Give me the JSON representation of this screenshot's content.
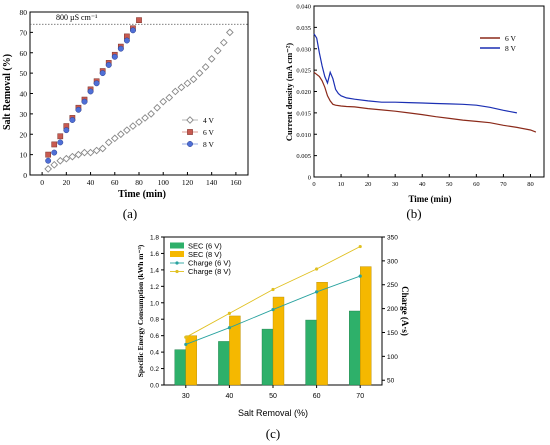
{
  "panel_labels": [
    "(a)",
    "(b)",
    "(c)"
  ],
  "chart_data": [
    {
      "type": "scatter",
      "panel": "(a)",
      "xlabel": "Time (min)",
      "ylabel": "Salt Removal (%)",
      "xlim": [
        -10,
        170
      ],
      "ylim": [
        0,
        80
      ],
      "xticks": [
        "0",
        "20",
        "40",
        "60",
        "80",
        "100",
        "120",
        "140",
        "160"
      ],
      "yticks": [
        "0",
        "10",
        "20",
        "30",
        "40",
        "50",
        "60",
        "70",
        "80"
      ],
      "legend_position": "bottom-right",
      "annotation": {
        "text": "800 µS cm⁻¹",
        "y": 74
      },
      "series": [
        {
          "name": "4 V",
          "marker": "open-diamond",
          "color": "#888888",
          "x": [
            5,
            10,
            15,
            20,
            25,
            30,
            35,
            40,
            45,
            50,
            55,
            60,
            65,
            70,
            75,
            80,
            85,
            90,
            95,
            100,
            105,
            110,
            115,
            120,
            125,
            130,
            135,
            140,
            145,
            150,
            155
          ],
          "y": [
            3,
            5,
            7,
            8,
            9,
            10,
            11,
            11,
            12,
            13,
            16,
            18,
            20,
            22,
            24,
            26,
            28,
            30,
            33,
            36,
            38,
            41,
            43,
            45,
            47,
            50,
            53,
            57,
            61,
            65,
            70
          ]
        },
        {
          "name": "6 V",
          "marker": "square",
          "color": "#c85a50",
          "x": [
            5,
            10,
            15,
            20,
            25,
            30,
            35,
            40,
            45,
            50,
            55,
            60,
            65,
            70,
            75,
            80
          ],
          "y": [
            10,
            15,
            19,
            24,
            28,
            33,
            37,
            42,
            46,
            51,
            55,
            59,
            63,
            68,
            72,
            76
          ]
        },
        {
          "name": "8 V",
          "marker": "circle",
          "color": "#4f6fd6",
          "x": [
            5,
            10,
            15,
            20,
            25,
            30,
            35,
            40,
            45,
            50,
            55,
            60,
            65,
            70,
            75
          ],
          "y": [
            7,
            11,
            16,
            22,
            27,
            32,
            36,
            41,
            45,
            50,
            54,
            58,
            62,
            66,
            71
          ]
        }
      ]
    },
    {
      "type": "line",
      "panel": "(b)",
      "xlabel": "Time (min)",
      "ylabel": "Current density (mA cm⁻²)",
      "xlim": [
        0,
        85
      ],
      "ylim": [
        0,
        0.04
      ],
      "xticks": [
        "0",
        "10",
        "20",
        "30",
        "40",
        "50",
        "60",
        "70",
        "80"
      ],
      "yticks": [
        "0",
        "0.005",
        "0.010",
        "0.015",
        "0.020",
        "0.025",
        "0.030",
        "0.035",
        "0.040"
      ],
      "legend_position": "top-right",
      "series": [
        {
          "name": "6 V",
          "color": "#8b2a1a",
          "x": [
            0,
            2,
            3,
            4,
            5,
            6,
            7,
            8,
            10,
            12,
            15,
            20,
            25,
            30,
            35,
            40,
            45,
            50,
            55,
            60,
            65,
            70,
            75,
            80,
            82
          ],
          "y": [
            0.0245,
            0.0235,
            0.0225,
            0.021,
            0.019,
            0.0178,
            0.017,
            0.0168,
            0.0166,
            0.0165,
            0.0164,
            0.016,
            0.0157,
            0.0154,
            0.015,
            0.0146,
            0.0141,
            0.0137,
            0.0133,
            0.013,
            0.0127,
            0.0121,
            0.0116,
            0.011,
            0.0105
          ]
        },
        {
          "name": "8 V",
          "color": "#1b2fb3",
          "x": [
            0,
            1,
            2,
            3,
            4,
            5,
            6,
            7,
            8,
            9,
            10,
            12,
            15,
            20,
            25,
            30,
            35,
            40,
            45,
            50,
            55,
            60,
            65,
            70,
            75
          ],
          "y": [
            0.0335,
            0.0325,
            0.029,
            0.026,
            0.0235,
            0.022,
            0.0245,
            0.023,
            0.0205,
            0.0195,
            0.019,
            0.0185,
            0.0182,
            0.0178,
            0.0175,
            0.0175,
            0.0174,
            0.0173,
            0.0172,
            0.0171,
            0.017,
            0.0168,
            0.0163,
            0.0156,
            0.015
          ]
        }
      ]
    },
    {
      "type": "bar",
      "panel": "(c)",
      "categories": [
        "30",
        "40",
        "50",
        "60",
        "70"
      ],
      "xlabel": "Salt Removal (%)",
      "ylabel": "Specific Energy Consumption (kWh m⁻³)",
      "ylabel_right": "Charge (A·s)",
      "ylim": [
        0,
        1.8
      ],
      "ylim_right": [
        40,
        350
      ],
      "yticks": [
        "0.0",
        "0.2",
        "0.4",
        "0.6",
        "0.8",
        "1.0",
        "1.2",
        "1.4",
        "1.6",
        "1.8"
      ],
      "yticks_right": [
        "50",
        "100",
        "150",
        "200",
        "250",
        "300",
        "350"
      ],
      "legend_position": "top-left",
      "bar_series": [
        {
          "name": "SEC (6 V)",
          "color": "#2eb06a",
          "values": [
            0.43,
            0.53,
            0.68,
            0.79,
            0.9
          ]
        },
        {
          "name": "SEC (8 V)",
          "color": "#f5b800",
          "values": [
            0.6,
            0.84,
            1.07,
            1.25,
            1.44
          ]
        }
      ],
      "line_series": [
        {
          "name": "Charge (6 V)",
          "color": "#2aa3a0",
          "values": [
            125,
            160,
            198,
            235,
            268
          ]
        },
        {
          "name": "Charge (8 V)",
          "color": "#e0c020",
          "values": [
            140,
            190,
            240,
            283,
            330
          ]
        }
      ]
    }
  ]
}
